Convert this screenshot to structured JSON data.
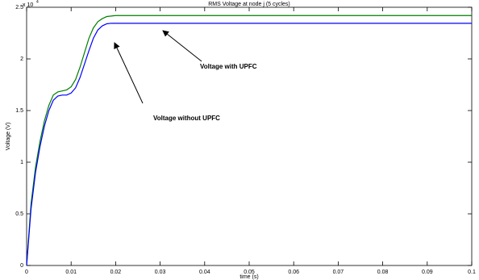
{
  "chart_data": {
    "type": "line",
    "title": "RMS Voltage at node j (5 cycles)",
    "x_label": "time (s)",
    "y_label": "Voltage (V)",
    "y_multiplier": {
      "base": "x 10",
      "exponent": "4"
    },
    "x": [
      0,
      0.001,
      0.002,
      0.003,
      0.004,
      0.005,
      0.006,
      0.007,
      0.008,
      0.009,
      0.01,
      0.011,
      0.012,
      0.013,
      0.014,
      0.015,
      0.016,
      0.017,
      0.018,
      0.019,
      0.02,
      0.03,
      0.04,
      0.1
    ],
    "series": [
      {
        "name": "Voltage with UPFC",
        "color": "#007f00",
        "values": [
          0,
          0.6,
          0.95,
          1.2,
          1.4,
          1.55,
          1.65,
          1.68,
          1.69,
          1.7,
          1.73,
          1.8,
          1.92,
          2.06,
          2.2,
          2.3,
          2.36,
          2.39,
          2.41,
          2.415,
          2.42,
          2.42,
          2.42,
          2.42
        ]
      },
      {
        "name": "Voltage without UPFC",
        "color": "#0000ff",
        "values": [
          0,
          0.55,
          0.9,
          1.15,
          1.35,
          1.5,
          1.6,
          1.64,
          1.65,
          1.65,
          1.67,
          1.72,
          1.82,
          1.95,
          2.08,
          2.2,
          2.28,
          2.32,
          2.34,
          2.345,
          2.345,
          2.345,
          2.345,
          2.345
        ]
      }
    ],
    "xlim": [
      0,
      0.1
    ],
    "xticks": [
      0,
      0.01,
      0.02,
      0.03,
      0.04,
      0.05,
      0.06,
      0.07,
      0.08,
      0.09,
      0.1
    ],
    "ylim": [
      0,
      2.5
    ],
    "yticks": [
      0,
      0.5,
      1,
      1.5,
      2,
      2.5
    ],
    "grid": false
  }
}
